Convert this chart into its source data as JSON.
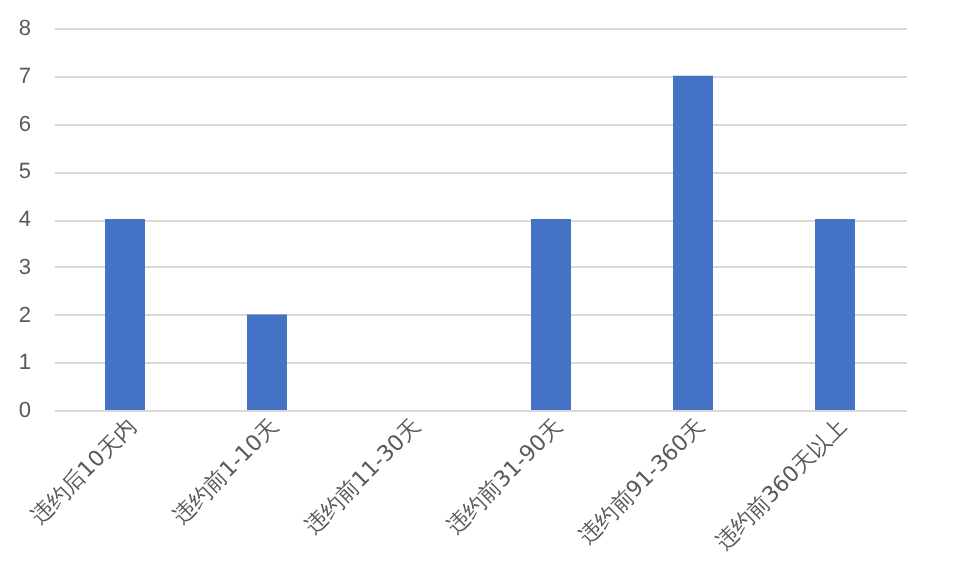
{
  "chart_data": {
    "type": "bar",
    "categories": [
      "违约后10天内",
      "违约前1-10天",
      "违约前11-30天",
      "违约前31-90天",
      "违约前91-360天",
      "违约前360天以上"
    ],
    "values": [
      4,
      2,
      0,
      4,
      7,
      4
    ],
    "color": "#4472c4",
    "ylim": [
      0,
      8
    ],
    "yticks": [
      0,
      1,
      2,
      3,
      4,
      5,
      6,
      7,
      8
    ],
    "grid": "y"
  }
}
